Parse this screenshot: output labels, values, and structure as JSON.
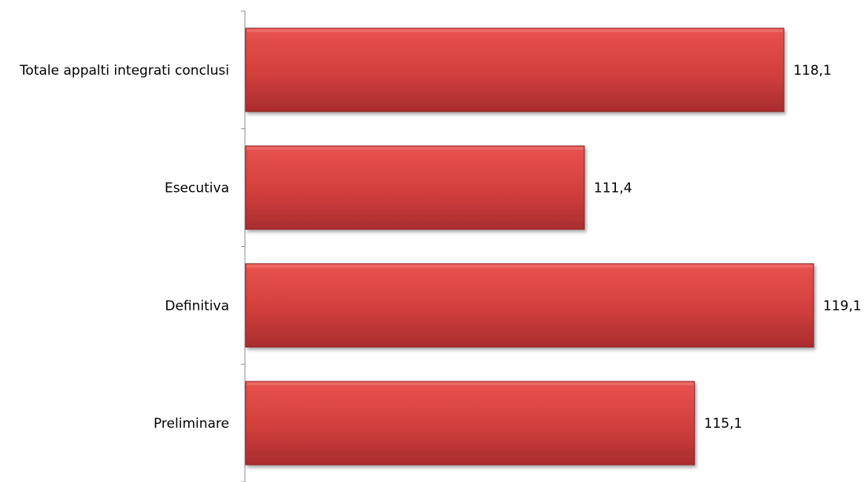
{
  "chart_data": {
    "type": "bar",
    "orientation": "horizontal",
    "categories": [
      "Totale appalti integrati conclusi",
      "Esecutiva",
      "Definitiva",
      "Preliminare"
    ],
    "values": [
      118.1,
      111.4,
      119.1,
      115.1
    ],
    "value_labels": [
      "118,1",
      "111,4",
      "119,1",
      "115,1"
    ],
    "title": "",
    "xlabel": "",
    "ylabel": "",
    "xlim": [
      100,
      120
    ],
    "grid": false,
    "legend": "none",
    "bar_color": "#c0383a"
  }
}
